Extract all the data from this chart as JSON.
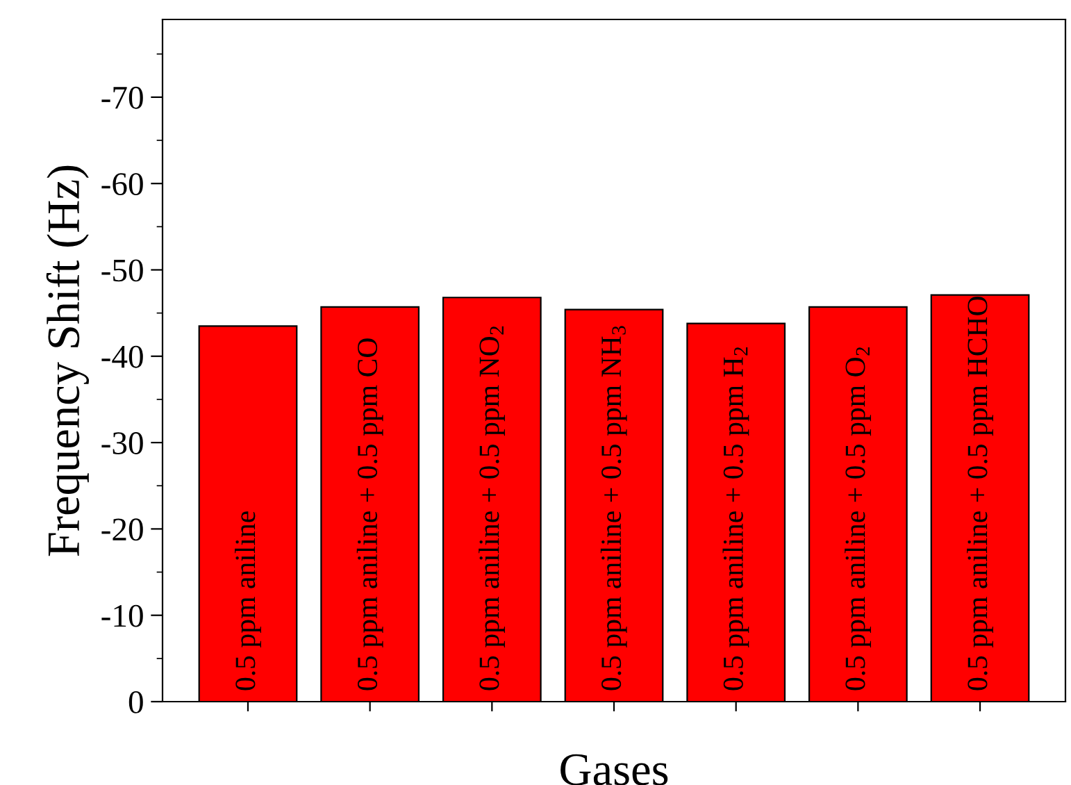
{
  "chart_data": {
    "type": "bar",
    "xlabel": "Gases",
    "ylabel": "Frequency Shift (Hz)",
    "categories": [
      "0.5 ppm aniline",
      "0.5 ppm aniline + 0.5 ppm CO",
      "0.5 ppm aniline + 0.5 ppm NO$_{2}$",
      "0.5 ppm aniline + 0.5 ppm NH$_{3}$",
      "0.5 ppm aniline + 0.5 ppm H$_{2}$",
      "0.5 ppm aniline + 0.5 ppm O$_{2}$",
      "0.5 ppm aniline + 0.5 ppm HCHO"
    ],
    "values": [
      -43.5,
      -45.7,
      -46.8,
      -45.4,
      -43.8,
      -45.7,
      -47.1
    ],
    "color": "#ff0000",
    "ylim": [
      0,
      -79
    ],
    "yticks": [
      0,
      -10,
      -20,
      -30,
      -40,
      -50,
      -60,
      -70
    ],
    "grid": false,
    "legend": false
  }
}
